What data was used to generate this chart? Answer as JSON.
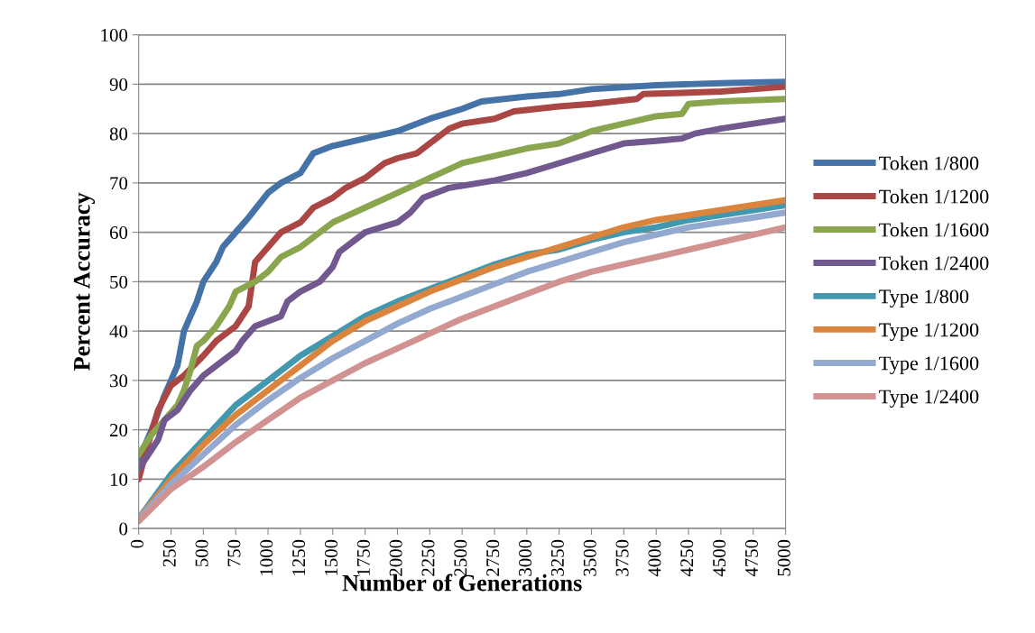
{
  "chart_data": {
    "type": "line",
    "xlabel": "Number of Generations",
    "ylabel": "Percent Accuracy",
    "xlim": [
      0,
      5000
    ],
    "xticks": [
      0,
      250,
      500,
      750,
      1000,
      1250,
      1500,
      1750,
      2000,
      2250,
      2500,
      2750,
      3000,
      3250,
      3500,
      3750,
      4000,
      4250,
      4500,
      4750,
      5000
    ],
    "ylim": [
      0,
      100
    ],
    "yticks": [
      0,
      10,
      20,
      30,
      40,
      50,
      60,
      70,
      80,
      90,
      100
    ],
    "grid": "y",
    "legend": "right",
    "marker": "none",
    "line_style": "solid",
    "series": [
      {
        "name": "Token 1/800",
        "color": "#4572a7",
        "x": [
          0,
          100,
          200,
          300,
          350,
          400,
          450,
          500,
          600,
          650,
          750,
          850,
          1000,
          1100,
          1250,
          1350,
          1500,
          1750,
          2000,
          2250,
          2500,
          2650,
          3000,
          3250,
          3500,
          4000,
          4500,
          5000
        ],
        "values": [
          14,
          20,
          27,
          33,
          40,
          43,
          46,
          50,
          54,
          57,
          60,
          63,
          68,
          70,
          72,
          76,
          77.5,
          79,
          80.5,
          83,
          85,
          86.5,
          87.5,
          88,
          89,
          89.8,
          90.2,
          90.5
        ]
      },
      {
        "name": "Token 1/1200",
        "color": "#aa4643",
        "x": [
          0,
          50,
          150,
          250,
          350,
          500,
          600,
          750,
          850,
          900,
          1000,
          1100,
          1250,
          1350,
          1500,
          1600,
          1750,
          1900,
          2000,
          2150,
          2250,
          2400,
          2500,
          2750,
          2900,
          3250,
          3500,
          3850,
          3900,
          4500,
          4750,
          5000
        ],
        "values": [
          10,
          15,
          24,
          29,
          31,
          35,
          38,
          41,
          45,
          54,
          57,
          60,
          62,
          65,
          67,
          69,
          71,
          74,
          75,
          76,
          78,
          81,
          82,
          83,
          84.5,
          85.5,
          86,
          87,
          88,
          88.5,
          89,
          89.5
        ]
      },
      {
        "name": "Token 1/1600",
        "color": "#89a54e",
        "x": [
          0,
          100,
          200,
          300,
          350,
          400,
          450,
          500,
          600,
          700,
          750,
          900,
          1000,
          1100,
          1250,
          1500,
          1750,
          2000,
          2250,
          2500,
          2750,
          3000,
          3250,
          3500,
          3750,
          4000,
          4200,
          4250,
          4500,
          5000
        ],
        "values": [
          15,
          19,
          22,
          25,
          28,
          32,
          37,
          38,
          41,
          45,
          48,
          50,
          52,
          55,
          57,
          62,
          65,
          68,
          71,
          74,
          75.5,
          77,
          78,
          80.5,
          82,
          83.5,
          84,
          86,
          86.5,
          87
        ]
      },
      {
        "name": "Token 1/2400",
        "color": "#71588f",
        "x": [
          0,
          100,
          150,
          200,
          300,
          400,
          500,
          600,
          750,
          800,
          900,
          1000,
          1100,
          1150,
          1250,
          1400,
          1500,
          1550,
          1750,
          2000,
          2100,
          2200,
          2400,
          2750,
          3000,
          3250,
          3500,
          3750,
          4000,
          4200,
          4300,
          4500,
          4750,
          5000
        ],
        "values": [
          12,
          16,
          18,
          22,
          24,
          28,
          31,
          33,
          36,
          38,
          41,
          42,
          43,
          46,
          48,
          50,
          53,
          56,
          60,
          62,
          64,
          67,
          69,
          70.5,
          72,
          74,
          76,
          78,
          78.5,
          79,
          80,
          81,
          82,
          83
        ]
      },
      {
        "name": "Type 1/800",
        "color": "#4198af",
        "x": [
          0,
          250,
          500,
          750,
          1000,
          1250,
          1500,
          1750,
          2000,
          2250,
          2500,
          2750,
          3000,
          3250,
          3500,
          3750,
          4000,
          4250,
          4500,
          4750,
          5000
        ],
        "values": [
          2,
          11,
          18,
          25,
          30,
          35,
          39,
          43,
          46,
          48.5,
          51,
          53.5,
          55.5,
          56.5,
          58.5,
          60,
          61,
          62.5,
          63.5,
          64.5,
          65.5
        ]
      },
      {
        "name": "Type 1/1200",
        "color": "#db843d",
        "x": [
          0,
          250,
          500,
          750,
          1000,
          1250,
          1500,
          1750,
          2000,
          2250,
          2500,
          2750,
          3000,
          3250,
          3500,
          3750,
          4000,
          4250,
          4500,
          4750,
          5000
        ],
        "values": [
          2,
          10,
          17,
          23,
          28,
          33,
          38,
          42,
          45,
          48,
          50.5,
          53,
          55,
          57,
          59,
          61,
          62.5,
          63.5,
          64.5,
          65.5,
          66.5
        ]
      },
      {
        "name": "Type 1/1600",
        "color": "#93a9cf",
        "x": [
          0,
          250,
          500,
          750,
          1000,
          1250,
          1500,
          1750,
          2000,
          2250,
          2500,
          2750,
          3000,
          3250,
          3500,
          3750,
          4000,
          4250,
          4500,
          4750,
          5000
        ],
        "values": [
          2,
          9,
          15,
          21,
          26,
          30.5,
          34.5,
          38,
          41.5,
          44.5,
          47,
          49.5,
          52,
          54,
          56,
          58,
          59.5,
          61,
          62,
          63,
          64
        ]
      },
      {
        "name": "Type 1/2400",
        "color": "#d19392",
        "x": [
          0,
          250,
          500,
          750,
          1000,
          1250,
          1500,
          1750,
          2000,
          2250,
          2500,
          2750,
          3000,
          3250,
          3500,
          3750,
          4000,
          4250,
          4500,
          4750,
          5000
        ],
        "values": [
          1.5,
          8,
          12.5,
          17.5,
          22,
          26.5,
          30,
          33.5,
          36.5,
          39.5,
          42.5,
          45,
          47.5,
          50,
          52,
          53.5,
          55,
          56.5,
          58,
          59.5,
          61
        ]
      }
    ]
  }
}
